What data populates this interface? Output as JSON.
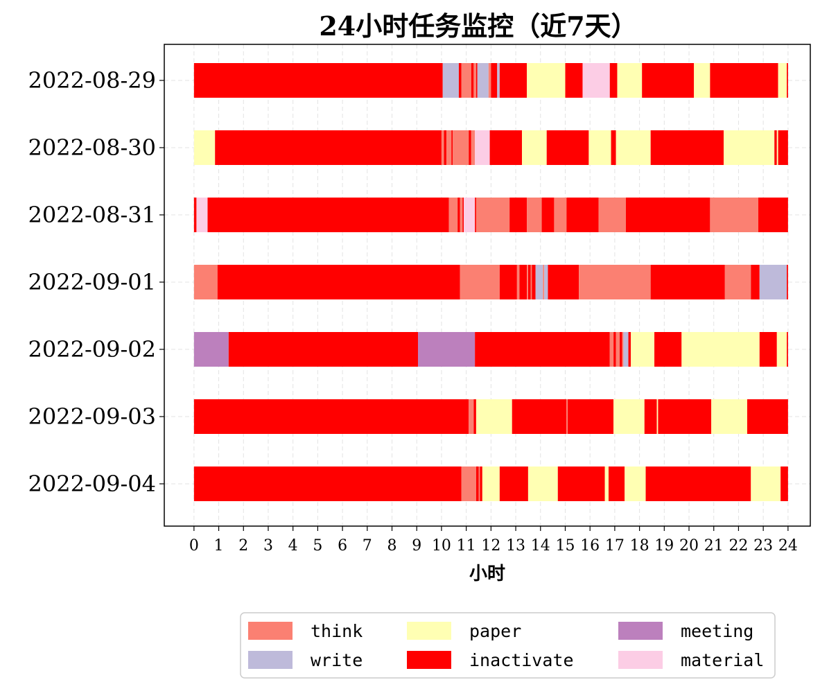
{
  "chart_data": {
    "type": "bar",
    "orientation": "horizontal",
    "stacked": true,
    "title": "24小时任务监控（近7天）",
    "xlabel": "小时",
    "ylabel": "",
    "xlim": [
      -1.2,
      24.9
    ],
    "xticks": [
      0,
      1,
      2,
      3,
      4,
      5,
      6,
      7,
      8,
      9,
      10,
      11,
      12,
      13,
      14,
      15,
      16,
      17,
      18,
      19,
      20,
      21,
      22,
      23,
      24
    ],
    "grid": true,
    "legend": {
      "placement": "bottom-center",
      "columns": 3
    },
    "colors": {
      "think": "#fb8072",
      "write": "#bebada",
      "paper": "#ffffb3",
      "inactivate": "#ff0000",
      "meeting": "#bc80bd",
      "material": "#fccde5"
    },
    "legend_entries": [
      "think",
      "write",
      "paper",
      "inactivate",
      "meeting",
      "material"
    ],
    "categories": [
      "2022-08-29",
      "2022-08-30",
      "2022-08-31",
      "2022-09-01",
      "2022-09-02",
      "2022-09-03",
      "2022-09-04"
    ],
    "rows": [
      {
        "date": "2022-08-29",
        "segments": [
          [
            "inactivate",
            0.0,
            10.05
          ],
          [
            "write",
            10.05,
            10.7
          ],
          [
            "inactivate",
            10.7,
            10.8
          ],
          [
            "think",
            10.8,
            11.2
          ],
          [
            "inactivate",
            11.2,
            11.3
          ],
          [
            "think",
            11.3,
            11.4
          ],
          [
            "inactivate",
            11.4,
            11.45
          ],
          [
            "write",
            11.45,
            11.9
          ],
          [
            "think",
            11.9,
            12.0
          ],
          [
            "inactivate",
            12.0,
            12.25
          ],
          [
            "write",
            12.25,
            12.35
          ],
          [
            "inactivate",
            12.35,
            13.45
          ],
          [
            "paper",
            13.45,
            15.0
          ],
          [
            "inactivate",
            15.0,
            15.7
          ],
          [
            "material",
            15.7,
            16.8
          ],
          [
            "inactivate",
            16.8,
            17.1
          ],
          [
            "paper",
            17.1,
            18.1
          ],
          [
            "inactivate",
            18.1,
            20.2
          ],
          [
            "paper",
            20.2,
            20.85
          ],
          [
            "inactivate",
            20.85,
            23.6
          ],
          [
            "paper",
            23.6,
            23.95
          ],
          [
            "inactivate",
            23.95,
            24.0
          ]
        ]
      },
      {
        "date": "2022-08-30",
        "segments": [
          [
            "paper",
            0.0,
            0.85
          ],
          [
            "inactivate",
            0.85,
            10.0
          ],
          [
            "think",
            10.0,
            10.1
          ],
          [
            "inactivate",
            10.1,
            10.2
          ],
          [
            "think",
            10.2,
            10.4
          ],
          [
            "inactivate",
            10.4,
            10.45
          ],
          [
            "think",
            10.45,
            11.1
          ],
          [
            "inactivate",
            11.1,
            11.2
          ],
          [
            "think",
            11.2,
            11.35
          ],
          [
            "material",
            11.35,
            11.95
          ],
          [
            "inactivate",
            11.95,
            13.25
          ],
          [
            "paper",
            13.25,
            14.25
          ],
          [
            "inactivate",
            14.25,
            15.95
          ],
          [
            "paper",
            15.95,
            16.85
          ],
          [
            "inactivate",
            16.85,
            17.05
          ],
          [
            "paper",
            17.05,
            18.45
          ],
          [
            "inactivate",
            18.45,
            21.4
          ],
          [
            "paper",
            21.4,
            23.45
          ],
          [
            "inactivate",
            23.45,
            23.55
          ],
          [
            "paper",
            23.55,
            23.6
          ],
          [
            "inactivate",
            23.6,
            24.0
          ]
        ]
      },
      {
        "date": "2022-08-31",
        "segments": [
          [
            "inactivate",
            0.0,
            0.1
          ],
          [
            "material",
            0.1,
            0.55
          ],
          [
            "inactivate",
            0.55,
            10.3
          ],
          [
            "think",
            10.3,
            10.65
          ],
          [
            "inactivate",
            10.65,
            10.75
          ],
          [
            "think",
            10.75,
            10.85
          ],
          [
            "inactivate",
            10.85,
            10.9
          ],
          [
            "material",
            10.9,
            11.35
          ],
          [
            "inactivate",
            11.35,
            11.4
          ],
          [
            "think",
            11.4,
            12.75
          ],
          [
            "inactivate",
            12.75,
            13.45
          ],
          [
            "think",
            13.45,
            14.05
          ],
          [
            "inactivate",
            14.05,
            14.55
          ],
          [
            "think",
            14.55,
            15.05
          ],
          [
            "inactivate",
            15.05,
            16.35
          ],
          [
            "think",
            16.35,
            17.45
          ],
          [
            "inactivate",
            17.45,
            20.85
          ],
          [
            "think",
            20.85,
            22.8
          ],
          [
            "inactivate",
            22.8,
            24.0
          ]
        ]
      },
      {
        "date": "2022-09-01",
        "segments": [
          [
            "think",
            0.0,
            0.95
          ],
          [
            "inactivate",
            0.95,
            10.75
          ],
          [
            "think",
            10.75,
            12.35
          ],
          [
            "inactivate",
            12.35,
            13.05
          ],
          [
            "think",
            13.05,
            13.15
          ],
          [
            "inactivate",
            13.15,
            13.45
          ],
          [
            "think",
            13.45,
            13.5
          ],
          [
            "inactivate",
            13.5,
            13.6
          ],
          [
            "think",
            13.6,
            13.65
          ],
          [
            "inactivate",
            13.65,
            13.8
          ],
          [
            "write",
            13.8,
            14.1
          ],
          [
            "think",
            14.1,
            14.15
          ],
          [
            "write",
            14.15,
            14.3
          ],
          [
            "inactivate",
            14.3,
            15.55
          ],
          [
            "think",
            15.55,
            18.45
          ],
          [
            "inactivate",
            18.45,
            21.45
          ],
          [
            "think",
            21.45,
            22.5
          ],
          [
            "inactivate",
            22.5,
            22.85
          ],
          [
            "write",
            22.85,
            23.95
          ],
          [
            "inactivate",
            23.95,
            24.0
          ]
        ]
      },
      {
        "date": "2022-09-02",
        "segments": [
          [
            "meeting",
            0.0,
            1.4
          ],
          [
            "inactivate",
            1.4,
            9.05
          ],
          [
            "meeting",
            9.05,
            11.35
          ],
          [
            "inactivate",
            11.35,
            16.8
          ],
          [
            "think",
            16.8,
            16.95
          ],
          [
            "inactivate",
            16.95,
            17.05
          ],
          [
            "think",
            17.05,
            17.2
          ],
          [
            "inactivate",
            17.2,
            17.3
          ],
          [
            "think",
            17.3,
            17.35
          ],
          [
            "write",
            17.35,
            17.55
          ],
          [
            "inactivate",
            17.55,
            17.65
          ],
          [
            "paper",
            17.65,
            18.6
          ],
          [
            "inactivate",
            18.6,
            19.7
          ],
          [
            "paper",
            19.7,
            22.85
          ],
          [
            "inactivate",
            22.85,
            23.55
          ],
          [
            "paper",
            23.55,
            23.95
          ],
          [
            "inactivate",
            23.95,
            24.0
          ]
        ]
      },
      {
        "date": "2022-09-03",
        "segments": [
          [
            "inactivate",
            0.0,
            11.1
          ],
          [
            "think",
            11.1,
            11.3
          ],
          [
            "inactivate",
            11.3,
            11.4
          ],
          [
            "paper",
            11.4,
            12.85
          ],
          [
            "inactivate",
            12.85,
            15.05
          ],
          [
            "think",
            15.05,
            15.1
          ],
          [
            "inactivate",
            15.1,
            16.95
          ],
          [
            "paper",
            16.95,
            18.2
          ],
          [
            "inactivate",
            18.2,
            18.7
          ],
          [
            "paper",
            18.7,
            18.75
          ],
          [
            "inactivate",
            18.75,
            20.9
          ],
          [
            "paper",
            20.9,
            22.35
          ],
          [
            "inactivate",
            22.35,
            24.0
          ]
        ]
      },
      {
        "date": "2022-09-04",
        "segments": [
          [
            "inactivate",
            0.0,
            10.8
          ],
          [
            "think",
            10.8,
            11.4
          ],
          [
            "inactivate",
            11.4,
            11.5
          ],
          [
            "think",
            11.5,
            11.55
          ],
          [
            "inactivate",
            11.55,
            11.65
          ],
          [
            "paper",
            11.65,
            12.35
          ],
          [
            "inactivate",
            12.35,
            13.5
          ],
          [
            "paper",
            13.5,
            14.7
          ],
          [
            "inactivate",
            14.7,
            16.6
          ],
          [
            "paper",
            16.6,
            16.75
          ],
          [
            "inactivate",
            16.75,
            17.4
          ],
          [
            "paper",
            17.4,
            18.25
          ],
          [
            "inactivate",
            18.25,
            22.5
          ],
          [
            "paper",
            22.5,
            23.7
          ],
          [
            "inactivate",
            23.7,
            24.0
          ]
        ]
      }
    ]
  }
}
